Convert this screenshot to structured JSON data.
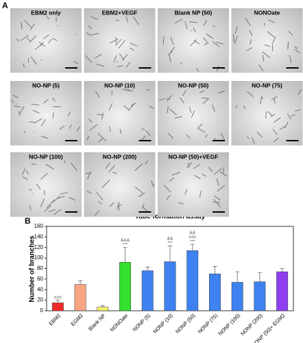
{
  "panel_a": {
    "label": "A",
    "titles": [
      "EBM2 only",
      "EBM2+VEGF",
      "Blank NP (50)",
      "NONOate",
      "NO-NP (5)",
      "NO-NP (10)",
      "NO-NP (50)",
      "NO-NP (75)",
      "NO-NP (100)",
      "NO-NP (200)",
      "NO-NP (50)+VEGF"
    ]
  },
  "panel_b": {
    "label": "B"
  },
  "chart_data": {
    "type": "bar",
    "title": "Tube formation assay",
    "y_label": "Number of branches",
    "categories": [
      "EBM2",
      "EGM2",
      "Blank NP",
      "NONOate",
      "NONP (5)",
      "NONP (10)",
      "NONP (50)",
      "NONP (75)",
      "NONP (100)",
      "NONP (200)",
      "NONP (50)+ EGM2"
    ],
    "values": [
      15,
      50,
      7,
      92,
      76,
      93,
      114,
      70,
      54,
      55,
      74
    ],
    "errors": [
      5,
      7,
      3,
      28,
      7,
      30,
      12,
      14,
      20,
      17,
      6
    ],
    "colors": [
      "#ee2a2a",
      "#f7a582",
      "#f2ee6a",
      "#33e02e",
      "#3d82f0",
      "#3d82f0",
      "#3d82f0",
      "#3d82f0",
      "#3d82f0",
      "#3d82f0",
      "#8f3ff0"
    ],
    "annotations": [
      [
        "###"
      ],
      null,
      null,
      [
        "&&&",
        "***"
      ],
      null,
      [
        "&&",
        "***"
      ],
      [
        "&&",
        "###",
        "***"
      ],
      null,
      null,
      null,
      null
    ],
    "ylim": [
      0,
      160
    ],
    "yticks": [
      0,
      20,
      40,
      60,
      80,
      100,
      120,
      140,
      160
    ],
    "grid": false
  }
}
